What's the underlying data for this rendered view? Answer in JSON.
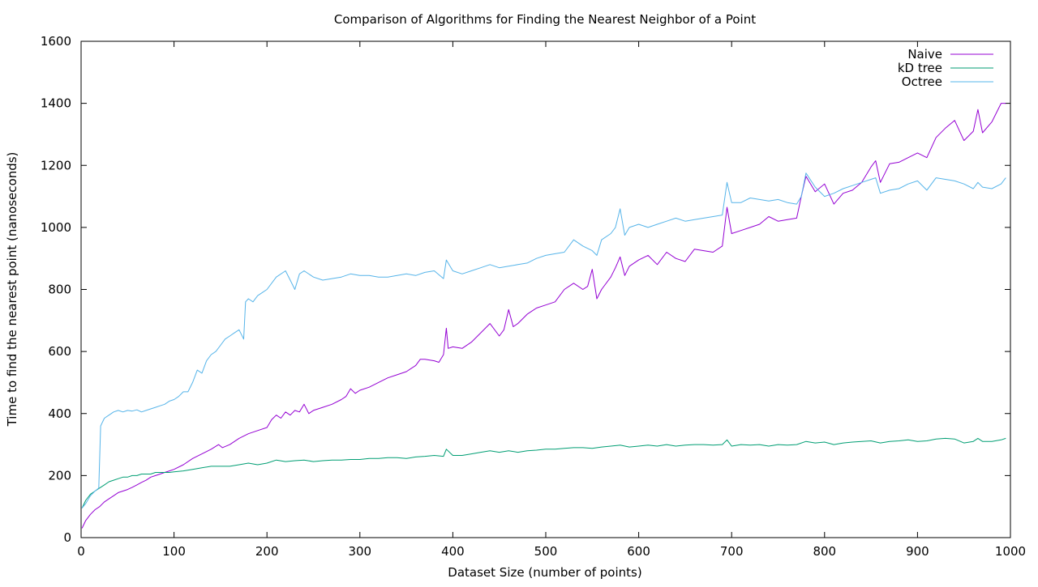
{
  "chart_data": {
    "type": "line",
    "title": "Comparison of Algorithms for Finding the Nearest Neighbor of a Point",
    "xlabel": "Dataset Size (number of points)",
    "ylabel": "Time to find the nearest point (nanoseconds)",
    "xlim": [
      0,
      1000
    ],
    "ylim": [
      0,
      1600
    ],
    "xticks": [
      0,
      100,
      200,
      300,
      400,
      500,
      600,
      700,
      800,
      900,
      1000
    ],
    "yticks": [
      0,
      200,
      400,
      600,
      800,
      1000,
      1200,
      1400,
      1600
    ],
    "grid": false,
    "legend_position": "top-right",
    "series": [
      {
        "name": "Naive",
        "color": "#9400d3",
        "x": [
          1,
          5,
          10,
          15,
          20,
          25,
          30,
          35,
          40,
          45,
          50,
          55,
          60,
          65,
          70,
          75,
          80,
          85,
          90,
          95,
          100,
          110,
          120,
          130,
          140,
          148,
          152,
          160,
          170,
          180,
          190,
          200,
          205,
          210,
          215,
          220,
          225,
          230,
          235,
          240,
          245,
          250,
          260,
          270,
          280,
          285,
          290,
          295,
          300,
          310,
          320,
          330,
          340,
          350,
          360,
          365,
          370,
          380,
          385,
          390,
          393,
          395,
          400,
          410,
          420,
          430,
          440,
          450,
          455,
          460,
          465,
          470,
          480,
          490,
          500,
          510,
          520,
          530,
          540,
          545,
          550,
          555,
          560,
          570,
          575,
          580,
          585,
          590,
          600,
          610,
          620,
          630,
          640,
          650,
          660,
          670,
          680,
          690,
          695,
          700,
          710,
          720,
          730,
          740,
          750,
          760,
          770,
          775,
          780,
          790,
          800,
          810,
          820,
          830,
          840,
          850,
          855,
          860,
          870,
          880,
          890,
          900,
          910,
          920,
          930,
          940,
          950,
          960,
          965,
          970,
          980,
          990,
          995
        ],
        "values": [
          30,
          55,
          75,
          90,
          100,
          115,
          125,
          135,
          145,
          150,
          155,
          162,
          170,
          178,
          185,
          195,
          200,
          205,
          210,
          215,
          220,
          235,
          255,
          270,
          285,
          300,
          290,
          300,
          320,
          335,
          345,
          355,
          380,
          395,
          385,
          405,
          395,
          410,
          405,
          430,
          400,
          410,
          420,
          430,
          445,
          455,
          480,
          465,
          475,
          485,
          500,
          515,
          525,
          535,
          555,
          575,
          575,
          570,
          565,
          590,
          675,
          610,
          615,
          610,
          630,
          660,
          690,
          650,
          670,
          735,
          680,
          690,
          720,
          740,
          750,
          760,
          800,
          820,
          800,
          810,
          865,
          770,
          800,
          840,
          870,
          905,
          845,
          875,
          895,
          910,
          880,
          920,
          900,
          890,
          930,
          925,
          920,
          940,
          1065,
          980,
          990,
          1000,
          1010,
          1035,
          1020,
          1025,
          1030,
          1100,
          1165,
          1115,
          1140,
          1075,
          1110,
          1120,
          1145,
          1195,
          1215,
          1145,
          1205,
          1210,
          1225,
          1240,
          1225,
          1290,
          1320,
          1345,
          1280,
          1310,
          1380,
          1305,
          1340,
          1400,
          1400
        ]
      },
      {
        "name": "kD tree",
        "color": "#009e73",
        "x": [
          1,
          5,
          10,
          15,
          20,
          25,
          30,
          35,
          40,
          45,
          50,
          55,
          60,
          65,
          70,
          75,
          80,
          85,
          90,
          95,
          100,
          110,
          120,
          130,
          140,
          150,
          160,
          170,
          180,
          190,
          200,
          210,
          220,
          230,
          240,
          250,
          260,
          270,
          280,
          290,
          300,
          310,
          320,
          330,
          340,
          350,
          360,
          370,
          380,
          390,
          393,
          400,
          410,
          420,
          430,
          440,
          450,
          460,
          470,
          480,
          490,
          500,
          510,
          520,
          530,
          540,
          550,
          560,
          570,
          580,
          590,
          600,
          610,
          620,
          630,
          640,
          650,
          660,
          670,
          680,
          690,
          695,
          700,
          710,
          720,
          730,
          740,
          750,
          760,
          770,
          780,
          790,
          800,
          810,
          820,
          830,
          840,
          850,
          860,
          870,
          880,
          890,
          900,
          910,
          920,
          930,
          940,
          950,
          960,
          965,
          970,
          980,
          990,
          995
        ],
        "values": [
          95,
          120,
          140,
          150,
          160,
          170,
          180,
          185,
          190,
          195,
          195,
          200,
          200,
          205,
          205,
          205,
          210,
          210,
          210,
          210,
          212,
          215,
          220,
          225,
          230,
          230,
          230,
          235,
          240,
          235,
          240,
          250,
          245,
          248,
          250,
          245,
          248,
          250,
          250,
          252,
          252,
          255,
          255,
          258,
          258,
          255,
          260,
          262,
          265,
          262,
          285,
          265,
          265,
          270,
          275,
          280,
          275,
          280,
          275,
          280,
          282,
          285,
          285,
          288,
          290,
          290,
          288,
          292,
          295,
          298,
          292,
          295,
          298,
          295,
          300,
          295,
          298,
          300,
          300,
          298,
          300,
          315,
          295,
          300,
          298,
          300,
          295,
          300,
          298,
          300,
          310,
          305,
          308,
          300,
          305,
          308,
          310,
          312,
          305,
          310,
          312,
          315,
          310,
          312,
          318,
          320,
          318,
          305,
          310,
          320,
          310,
          310,
          315,
          320
        ]
      },
      {
        "name": "Octree",
        "color": "#56b4e9",
        "x": [
          1,
          5,
          10,
          15,
          19,
          21,
          25,
          30,
          35,
          40,
          45,
          50,
          55,
          60,
          65,
          70,
          75,
          80,
          85,
          90,
          95,
          100,
          105,
          110,
          115,
          120,
          125,
          130,
          135,
          140,
          145,
          150,
          155,
          160,
          165,
          170,
          175,
          177,
          180,
          185,
          190,
          195,
          200,
          210,
          220,
          225,
          230,
          235,
          240,
          250,
          260,
          270,
          280,
          290,
          300,
          310,
          320,
          330,
          340,
          350,
          360,
          370,
          380,
          390,
          393,
          400,
          410,
          420,
          430,
          440,
          450,
          460,
          470,
          480,
          490,
          500,
          510,
          520,
          530,
          540,
          550,
          555,
          560,
          570,
          575,
          580,
          585,
          590,
          600,
          610,
          620,
          630,
          640,
          650,
          660,
          670,
          680,
          690,
          695,
          700,
          710,
          720,
          730,
          740,
          750,
          760,
          770,
          775,
          780,
          790,
          800,
          810,
          820,
          830,
          840,
          850,
          855,
          860,
          870,
          880,
          890,
          900,
          910,
          920,
          930,
          940,
          950,
          960,
          965,
          970,
          980,
          990,
          995
        ],
        "values": [
          95,
          110,
          135,
          150,
          160,
          360,
          385,
          395,
          405,
          410,
          405,
          410,
          408,
          412,
          405,
          410,
          415,
          420,
          425,
          430,
          440,
          445,
          455,
          470,
          470,
          500,
          540,
          530,
          570,
          590,
          600,
          620,
          640,
          650,
          660,
          670,
          640,
          760,
          770,
          760,
          780,
          790,
          800,
          840,
          860,
          830,
          800,
          850,
          860,
          840,
          830,
          835,
          840,
          850,
          845,
          845,
          840,
          840,
          845,
          850,
          845,
          855,
          860,
          835,
          895,
          860,
          850,
          860,
          870,
          880,
          870,
          875,
          880,
          885,
          900,
          910,
          915,
          920,
          960,
          940,
          925,
          910,
          960,
          980,
          1000,
          1060,
          975,
          1000,
          1010,
          1000,
          1010,
          1020,
          1030,
          1020,
          1025,
          1030,
          1035,
          1040,
          1145,
          1080,
          1080,
          1095,
          1090,
          1085,
          1090,
          1080,
          1075,
          1100,
          1175,
          1130,
          1100,
          1110,
          1125,
          1135,
          1145,
          1155,
          1160,
          1110,
          1120,
          1125,
          1140,
          1150,
          1120,
          1160,
          1155,
          1150,
          1140,
          1125,
          1145,
          1130,
          1125,
          1140,
          1160
        ]
      }
    ]
  }
}
